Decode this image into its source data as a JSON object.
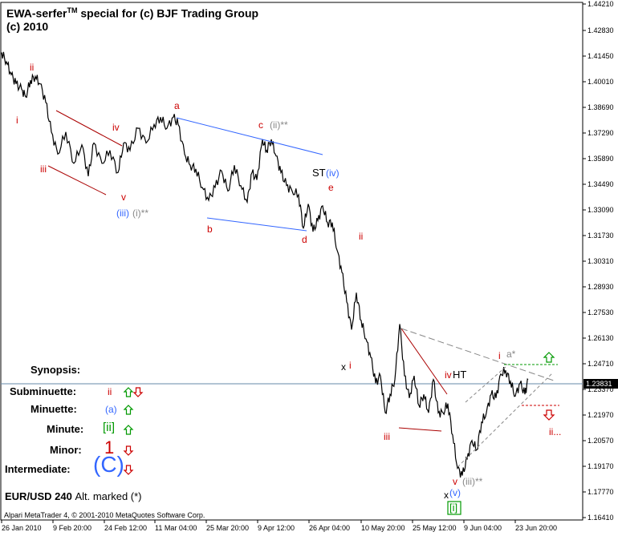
{
  "header": {
    "title_main": "EWA-serfer",
    "title_tm": "TM",
    "title_rest": " special for (c) BJF Trading Group",
    "subtitle": "(c) 2010"
  },
  "symbol": {
    "pair": "EUR/USD 240",
    "note": "Alt. marked (*)"
  },
  "copyright": "Alpari MetaTrader 4, © 2001-2010 MetaQuotes Software Corp.",
  "synopsis": {
    "title": "Synopsis:",
    "rows": [
      {
        "label": "Subminuette:",
        "wave": "ii",
        "color": "#cc0000",
        "arrows": [
          "up",
          "down"
        ]
      },
      {
        "label": "Minuette:",
        "wave": "(a)",
        "color": "#3366ff",
        "arrows": [
          "up"
        ]
      },
      {
        "label": "Minute:",
        "wave": "[ii]",
        "color": "#009900",
        "arrows": [
          "up"
        ]
      },
      {
        "label": "Minor:",
        "wave": "1",
        "color": "#cc0000",
        "arrows": [
          "down"
        ]
      },
      {
        "label": "Intermediate:",
        "wave": "(C)",
        "color": "#3366ff",
        "arrows": [
          "down"
        ]
      }
    ]
  },
  "chart_data": {
    "type": "line",
    "ylim": [
      1.162,
      1.4421
    ],
    "yticks": [
      "1.44210",
      "1.42830",
      "1.41450",
      "1.40010",
      "1.38690",
      "1.37290",
      "1.35890",
      "1.34490",
      "1.33090",
      "1.31730",
      "1.30310",
      "1.28930",
      "1.27530",
      "1.26130",
      "1.24710",
      "1.23370",
      "1.21970",
      "1.20570",
      "1.19170",
      "1.17770",
      "1.16410"
    ],
    "current_price": "1.23831",
    "xticks": [
      "26 Jan 2010",
      "9 Feb 20:00",
      "24 Feb 12:00",
      "11 Mar 04:00",
      "25 Mar 20:00",
      "9 Apr 12:00",
      "26 Apr 04:00",
      "10 May 20:00",
      "25 May 12:00",
      "9 Jun 04:00",
      "23 Jun 20:00"
    ],
    "series": [
      {
        "x": [
          0,
          6,
          12,
          18,
          25,
          30,
          36,
          42,
          48,
          55,
          62,
          70,
          80,
          90,
          100,
          108,
          115,
          125,
          135,
          145,
          152,
          160,
          170,
          180,
          190,
          198,
          206,
          214,
          220,
          228,
          235,
          242,
          250,
          258,
          266,
          274,
          282,
          290,
          298,
          306,
          312,
          318,
          325,
          330,
          336,
          342,
          348,
          355,
          362,
          370,
          376,
          382,
          388,
          394,
          400,
          406,
          412,
          418,
          424,
          430,
          436,
          442,
          448,
          454,
          460,
          466,
          472,
          478,
          484,
          490,
          496,
          502,
          508,
          514,
          520,
          526,
          532,
          538,
          544,
          550,
          556,
          562,
          568,
          574,
          580,
          586,
          592,
          598,
          604,
          610,
          616,
          622,
          628,
          634,
          640,
          646,
          652,
          656
        ],
        "y": [
          1.415,
          1.41,
          1.403,
          1.398,
          1.395,
          1.391,
          1.4,
          1.402,
          1.398,
          1.388,
          1.372,
          1.36,
          1.372,
          1.355,
          1.365,
          1.348,
          1.366,
          1.355,
          1.362,
          1.35,
          1.366,
          1.362,
          1.374,
          1.366,
          1.376,
          1.38,
          1.374,
          1.38,
          1.376,
          1.36,
          1.354,
          1.352,
          1.342,
          1.335,
          1.342,
          1.351,
          1.34,
          1.354,
          1.343,
          1.334,
          1.35,
          1.346,
          1.368,
          1.362,
          1.368,
          1.359,
          1.35,
          1.343,
          1.34,
          1.338,
          1.32,
          1.333,
          1.318,
          1.324,
          1.332,
          1.323,
          1.323,
          1.308,
          1.296,
          1.28,
          1.265,
          1.285,
          1.27,
          1.26,
          1.25,
          1.236,
          1.24,
          1.22,
          1.23,
          1.238,
          1.268,
          1.24,
          1.228,
          1.24,
          1.224,
          1.23,
          1.22,
          1.238,
          1.22,
          1.22,
          1.225,
          1.208,
          1.19,
          1.186,
          1.195,
          1.205,
          1.2,
          1.215,
          1.22,
          1.23,
          1.228,
          1.241,
          1.243,
          1.237,
          1.229,
          1.236,
          1.23,
          1.238
        ]
      }
    ],
    "annotations": [
      {
        "text": "ii",
        "color": "#cc0000"
      },
      {
        "text": "i",
        "color": "#cc0000"
      },
      {
        "text": "iii",
        "color": "#cc0000"
      },
      {
        "text": "iv",
        "color": "#cc0000"
      },
      {
        "text": "v",
        "color": "#cc0000"
      },
      {
        "text": "(iii)",
        "color": "#3366ff"
      },
      {
        "text": "(i)**",
        "color": "#888888"
      },
      {
        "text": "a",
        "color": "#cc0000"
      },
      {
        "text": "b",
        "color": "#cc0000"
      },
      {
        "text": "c",
        "color": "#cc0000"
      },
      {
        "text": "(ii)**",
        "color": "#888888"
      },
      {
        "text": "d",
        "color": "#cc0000"
      },
      {
        "text": "e",
        "color": "#cc0000"
      },
      {
        "text": "ST",
        "color": "#000000"
      },
      {
        "text": "(iv)",
        "color": "#3366ff"
      },
      {
        "text": "ii",
        "color": "#cc0000"
      },
      {
        "text": "x",
        "color": "#000000"
      },
      {
        "text": "i",
        "color": "#cc0000"
      },
      {
        "text": "iii",
        "color": "#cc0000"
      },
      {
        "text": "iv",
        "color": "#cc0000"
      },
      {
        "text": "HT",
        "color": "#000000"
      },
      {
        "text": "v",
        "color": "#cc0000"
      },
      {
        "text": "x",
        "color": "#000000"
      },
      {
        "text": "(v)",
        "color": "#3366ff"
      },
      {
        "text": "[i]",
        "color": "#009900"
      },
      {
        "text": "(iii)**",
        "color": "#888888"
      },
      {
        "text": "i",
        "color": "#cc0000"
      },
      {
        "text": "a*",
        "color": "#888888"
      },
      {
        "text": "ii...",
        "color": "#cc0000"
      }
    ],
    "colors": {
      "price": "#000000",
      "channel_red": "#aa0000",
      "channel_blue": "#3366ff",
      "dash_gray": "#888888",
      "up_arrow": "#009900",
      "down_arrow": "#cc0000",
      "hline": "#6688aa"
    }
  }
}
